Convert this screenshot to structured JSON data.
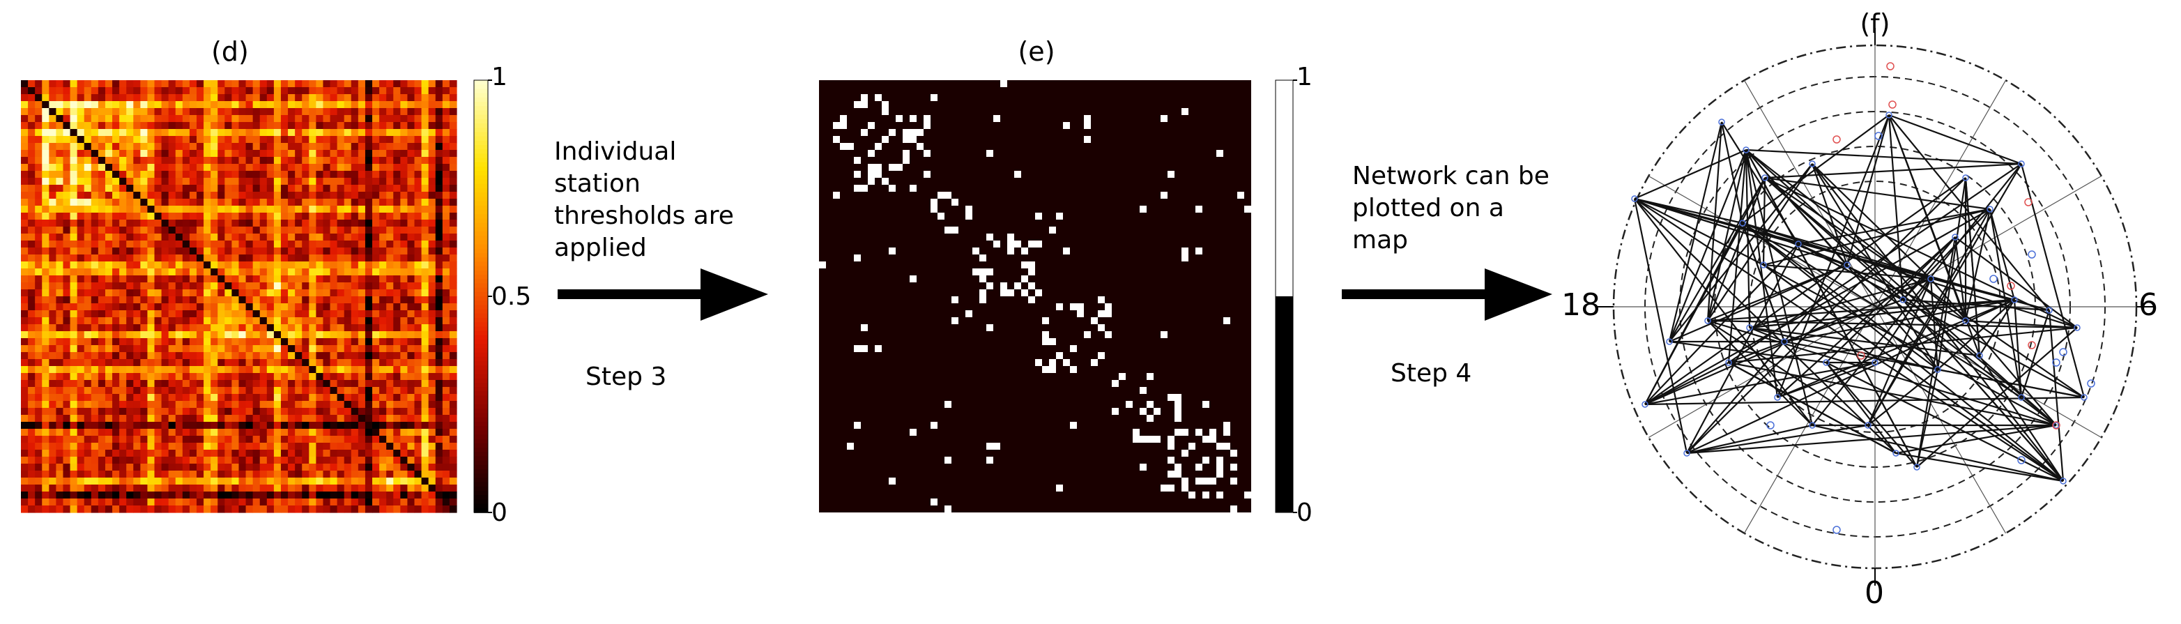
{
  "panels": {
    "d": {
      "label": "(d)",
      "colorbar_ticks": [
        "1",
        "0.5",
        "0"
      ],
      "colormap": [
        "#000000",
        "#7a0000",
        "#e41a00",
        "#ff8a00",
        "#ffe200",
        "#ffffcc"
      ]
    },
    "e": {
      "label": "(e)",
      "colorbar_ticks": [
        "1",
        "0"
      ],
      "colors": {
        "background": "#1a0000",
        "edge": "#ffffff"
      }
    },
    "f": {
      "label": "(f)",
      "axis_labels": {
        "left": "18",
        "right": "6",
        "bottom": "0"
      },
      "colors": {
        "edges": "#111111",
        "blue_stations": "#4a6fd8",
        "red_stations": "#e05050"
      }
    }
  },
  "steps": {
    "step3": {
      "text_lines": [
        "Individual",
        "station",
        "thresholds are",
        "applied"
      ],
      "label": "Step 3"
    },
    "step4": {
      "text_lines": [
        "Network can be",
        "plotted on a",
        "map"
      ],
      "label": "Step 4"
    }
  }
}
